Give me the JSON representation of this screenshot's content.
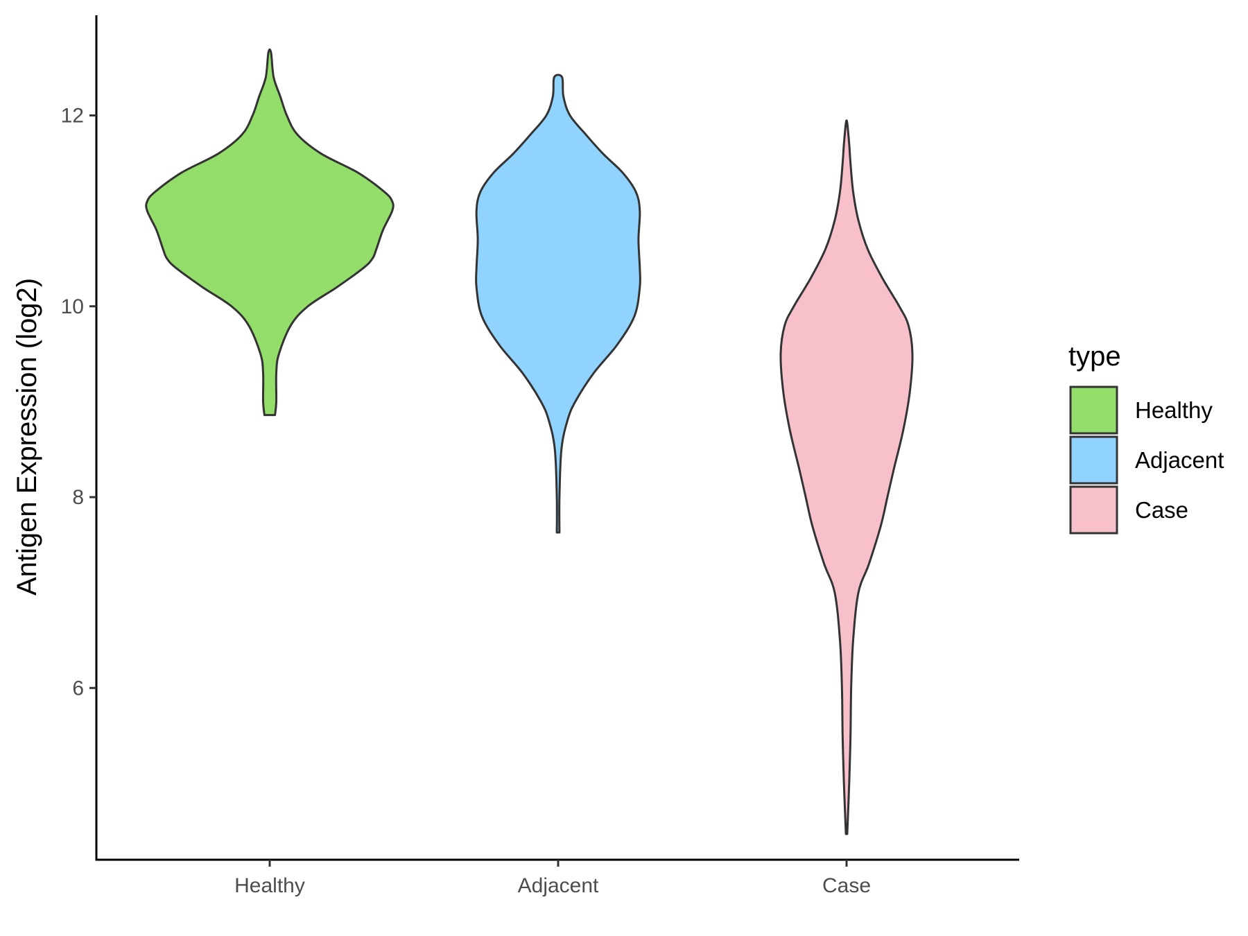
{
  "chart_data": {
    "type": "violin",
    "title": "",
    "xlabel": "",
    "ylabel": "Antigen Expression (log2)",
    "categories": [
      "Healthy",
      "Adjacent",
      "Case"
    ],
    "ylim": [
      4.2,
      13.05
    ],
    "yticks": [
      6,
      8,
      10,
      12
    ],
    "grid": false,
    "legend": {
      "title": "type",
      "position": "right"
    },
    "series": [
      {
        "name": "Healthy",
        "color": "#93DD6A",
        "min": 8.86,
        "max": 12.66,
        "profile": [
          [
            8.86,
            0.04
          ],
          [
            9.0,
            0.05
          ],
          [
            9.3,
            0.05
          ],
          [
            9.5,
            0.07
          ],
          [
            9.8,
            0.16
          ],
          [
            10.0,
            0.29
          ],
          [
            10.2,
            0.51
          ],
          [
            10.4,
            0.71
          ],
          [
            10.5,
            0.78
          ],
          [
            10.6,
            0.81
          ],
          [
            10.8,
            0.86
          ],
          [
            11.0,
            0.93
          ],
          [
            11.1,
            0.93
          ],
          [
            11.2,
            0.87
          ],
          [
            11.4,
            0.67
          ],
          [
            11.6,
            0.39
          ],
          [
            11.8,
            0.21
          ],
          [
            12.0,
            0.13
          ],
          [
            12.2,
            0.08
          ],
          [
            12.4,
            0.03
          ],
          [
            12.66,
            0.01
          ]
        ]
      },
      {
        "name": "Adjacent",
        "color": "#91D3FF",
        "min": 7.63,
        "max": 12.4,
        "profile": [
          [
            7.63,
            0.01
          ],
          [
            8.0,
            0.01
          ],
          [
            8.5,
            0.025
          ],
          [
            8.8,
            0.07
          ],
          [
            9.0,
            0.13
          ],
          [
            9.3,
            0.27
          ],
          [
            9.6,
            0.45
          ],
          [
            9.9,
            0.58
          ],
          [
            10.2,
            0.62
          ],
          [
            10.4,
            0.62
          ],
          [
            10.7,
            0.61
          ],
          [
            11.0,
            0.62
          ],
          [
            11.2,
            0.59
          ],
          [
            11.4,
            0.49
          ],
          [
            11.6,
            0.34
          ],
          [
            11.8,
            0.21
          ],
          [
            12.0,
            0.09
          ],
          [
            12.2,
            0.04
          ],
          [
            12.4,
            0.03
          ]
        ]
      },
      {
        "name": "Case",
        "color": "#F7C0CB",
        "min": 4.47,
        "max": 11.92,
        "profile": [
          [
            4.47,
            0.005
          ],
          [
            5.0,
            0.02
          ],
          [
            5.5,
            0.03
          ],
          [
            6.0,
            0.035
          ],
          [
            6.5,
            0.05
          ],
          [
            7.0,
            0.09
          ],
          [
            7.3,
            0.17
          ],
          [
            7.7,
            0.26
          ],
          [
            8.0,
            0.31
          ],
          [
            8.3,
            0.36
          ],
          [
            8.7,
            0.43
          ],
          [
            9.1,
            0.48
          ],
          [
            9.5,
            0.5
          ],
          [
            9.8,
            0.47
          ],
          [
            10.0,
            0.4
          ],
          [
            10.3,
            0.27
          ],
          [
            10.6,
            0.16
          ],
          [
            10.9,
            0.09
          ],
          [
            11.2,
            0.05
          ],
          [
            11.5,
            0.03
          ],
          [
            11.7,
            0.02
          ],
          [
            11.92,
            0.005
          ]
        ]
      }
    ]
  }
}
